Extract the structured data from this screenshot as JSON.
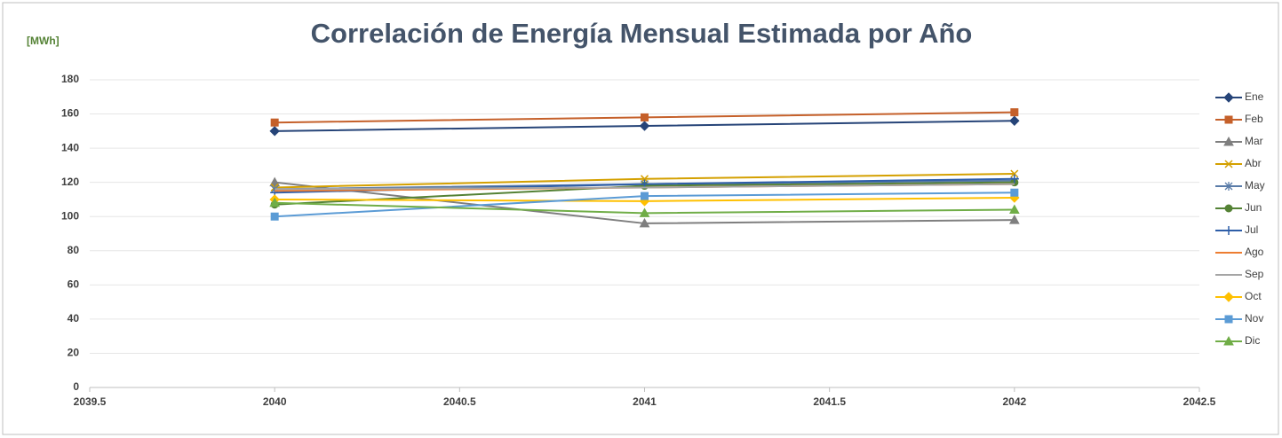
{
  "chart_data": {
    "type": "line",
    "title": "Correlación de Energía Mensual Estimada por Año",
    "y_label": "[MWh]",
    "x": [
      2040,
      2041,
      2042
    ],
    "xlim": [
      2039.5,
      2042.5
    ],
    "xticks": [
      2039.5,
      2040,
      2040.5,
      2041,
      2041.5,
      2042,
      2042.5
    ],
    "ylim": [
      0,
      180
    ],
    "yticks": [
      0,
      20,
      40,
      60,
      80,
      100,
      120,
      140,
      160,
      180
    ],
    "grid": true,
    "legend": "right",
    "series": [
      {
        "name": "Ene",
        "color": "#264478",
        "marker": "diamond",
        "values": [
          150,
          153,
          156
        ]
      },
      {
        "name": "Feb",
        "color": "#c5602a",
        "marker": "square",
        "values": [
          155,
          158,
          161
        ]
      },
      {
        "name": "Mar",
        "color": "#7f7f7f",
        "marker": "triangle",
        "values": [
          120,
          96,
          98
        ]
      },
      {
        "name": "Abr",
        "color": "#d4a000",
        "marker": "x",
        "values": [
          117,
          122,
          125
        ]
      },
      {
        "name": "May",
        "color": "#5a7ca8",
        "marker": "star",
        "values": [
          116,
          119,
          121
        ]
      },
      {
        "name": "Jun",
        "color": "#548235",
        "marker": "circle",
        "values": [
          107,
          118,
          120
        ]
      },
      {
        "name": "Jul",
        "color": "#2e5ea8",
        "marker": "plus",
        "values": [
          114,
          119,
          122
        ]
      },
      {
        "name": "Ago",
        "color": "#ed7d31",
        "marker": "none",
        "values": [
          115,
          117,
          119
        ]
      },
      {
        "name": "Sep",
        "color": "#a5a5a5",
        "marker": "none",
        "values": [
          116,
          117,
          119
        ]
      },
      {
        "name": "Oct",
        "color": "#ffc000",
        "marker": "diamond",
        "values": [
          110,
          109,
          111
        ]
      },
      {
        "name": "Nov",
        "color": "#5b9bd5",
        "marker": "square",
        "values": [
          100,
          112,
          114
        ]
      },
      {
        "name": "Dic",
        "color": "#70ad47",
        "marker": "triangle",
        "values": [
          108,
          102,
          104
        ]
      }
    ]
  }
}
